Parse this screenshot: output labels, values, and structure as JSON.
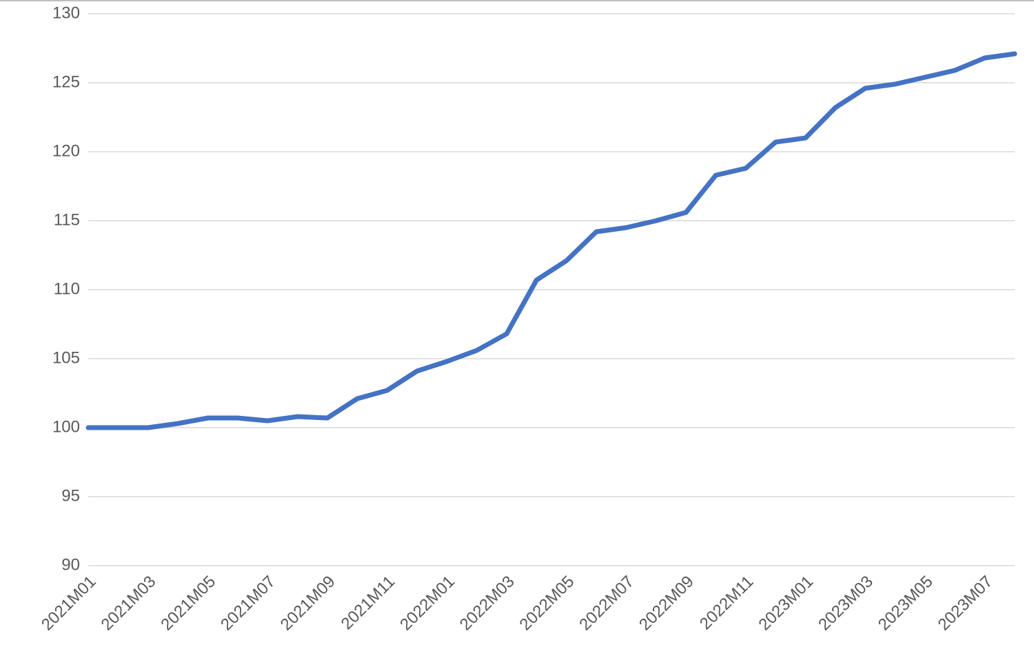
{
  "chart_data": {
    "type": "line",
    "categories": [
      "2021M01",
      null,
      "2021M03",
      null,
      "2021M05",
      null,
      "2021M07",
      null,
      "2021M09",
      null,
      "2021M11",
      null,
      "2022M01",
      null,
      "2022M03",
      null,
      "2022M05",
      null,
      "2022M07",
      null,
      "2022M09",
      null,
      "2022M11",
      null,
      "2023M01",
      null,
      "2023M03",
      null,
      "2023M05",
      null,
      "2023M07",
      null
    ],
    "values": [
      100.0,
      100.0,
      100.0,
      100.3,
      100.7,
      100.7,
      100.5,
      100.8,
      100.7,
      102.1,
      102.7,
      104.1,
      104.8,
      105.6,
      106.8,
      110.7,
      112.1,
      114.2,
      114.5,
      115.0,
      115.6,
      118.3,
      118.8,
      120.7,
      121.0,
      123.2,
      124.6,
      124.9,
      125.4,
      125.9,
      126.8,
      127.1
    ],
    "color": "#4472c4",
    "ylim": [
      90,
      130
    ],
    "yticks": [
      90,
      95,
      100,
      105,
      110,
      115,
      120,
      125,
      130
    ],
    "grid": true
  }
}
